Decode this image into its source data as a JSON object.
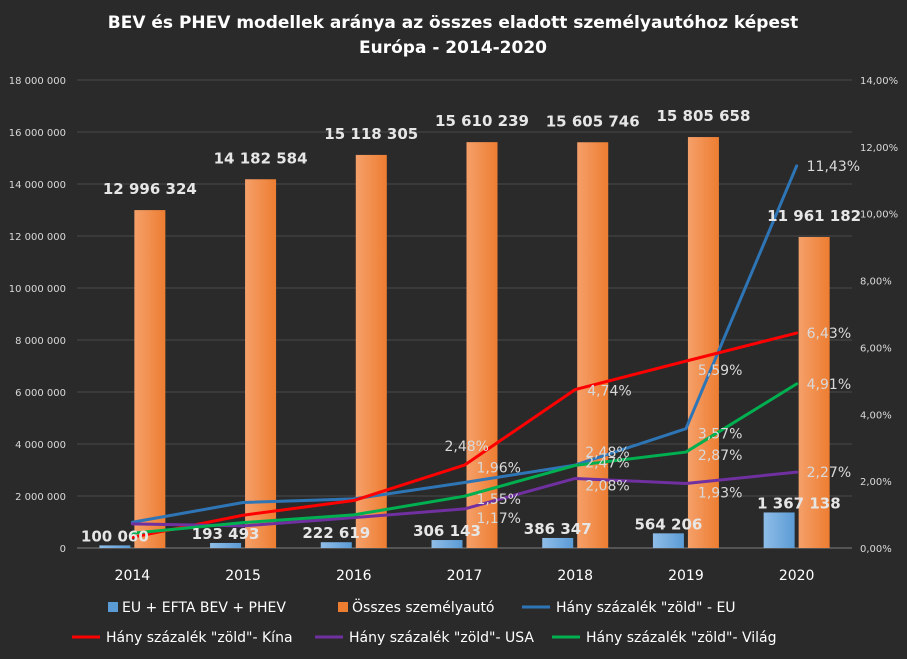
{
  "chart_data": {
    "type": "bar",
    "title": "BEV és PHEV modellek aránya az összes eladott személyautóhoz képest",
    "subtitle": "Európa  - 2014-2020",
    "categories": [
      "2014",
      "2015",
      "2016",
      "2017",
      "2018",
      "2019",
      "2020"
    ],
    "ylim": [
      0,
      18000000
    ],
    "y2lim": [
      0,
      14
    ],
    "yticks": [
      "0",
      "2 000 000",
      "4 000 000",
      "6 000 000",
      "8 000 000",
      "10 000 000",
      "12 000 000",
      "14 000 000",
      "16 000 000",
      "18 000 000"
    ],
    "y2ticks": [
      "0,00%",
      "2,00%",
      "4,00%",
      "6,00%",
      "8,00%",
      "10,00%",
      "12,00%",
      "14,00%"
    ],
    "grid": true,
    "legend_position": "bottom",
    "bar_series": [
      {
        "name": "EU + EFTA  BEV + PHEV",
        "color": "#5b9bd5",
        "values": [
          100060,
          193493,
          222619,
          306143,
          386347,
          564206,
          1367138
        ],
        "labels": [
          "100 060",
          "193 493",
          "222 619",
          "306 143",
          "386 347",
          "564 206",
          "1 367 138"
        ]
      },
      {
        "name": "Összes személyautó",
        "color": "#ed7d31",
        "values": [
          12996324,
          14182584,
          15118305,
          15610239,
          15605746,
          15805658,
          11961182
        ],
        "labels": [
          "12 996 324",
          "14 182 584",
          "15 118 305",
          "15 610 239",
          "15 605 746",
          "15 805 658",
          "11 961 182"
        ]
      }
    ],
    "line_series": [
      {
        "name": "Hány százalék \"zöld\" - EU",
        "color": "#2e75b6",
        "values": [
          0.77,
          1.36,
          1.47,
          1.96,
          2.48,
          3.57,
          11.43
        ],
        "labels": [
          "",
          "",
          "",
          "1,96%",
          "2,48%",
          "3,57%",
          "11,43%"
        ]
      },
      {
        "name": "Hány százalék \"zöld\"- Kína",
        "color": "#ff0000",
        "values": [
          0.32,
          0.98,
          1.42,
          2.48,
          4.74,
          5.59,
          6.43
        ],
        "labels": [
          "",
          "",
          "",
          "2,48%",
          "4,74%",
          "5,59%",
          "6,43%"
        ]
      },
      {
        "name": "Hány százalék \"zöld\"- USA",
        "color": "#7030a0",
        "values": [
          0.72,
          0.66,
          0.91,
          1.17,
          2.08,
          1.93,
          2.27
        ],
        "labels": [
          "",
          "",
          "",
          "1,17%",
          "2,08%",
          "1,93%",
          "2,27%"
        ]
      },
      {
        "name": "Hány százalék \"zöld\"- Világ",
        "color": "#00b050",
        "values": [
          0.44,
          0.76,
          0.99,
          1.55,
          2.47,
          2.87,
          4.91
        ],
        "labels": [
          "",
          "",
          "",
          "1,55%",
          "2,47%",
          "2,87%",
          "4,91%"
        ]
      }
    ]
  }
}
